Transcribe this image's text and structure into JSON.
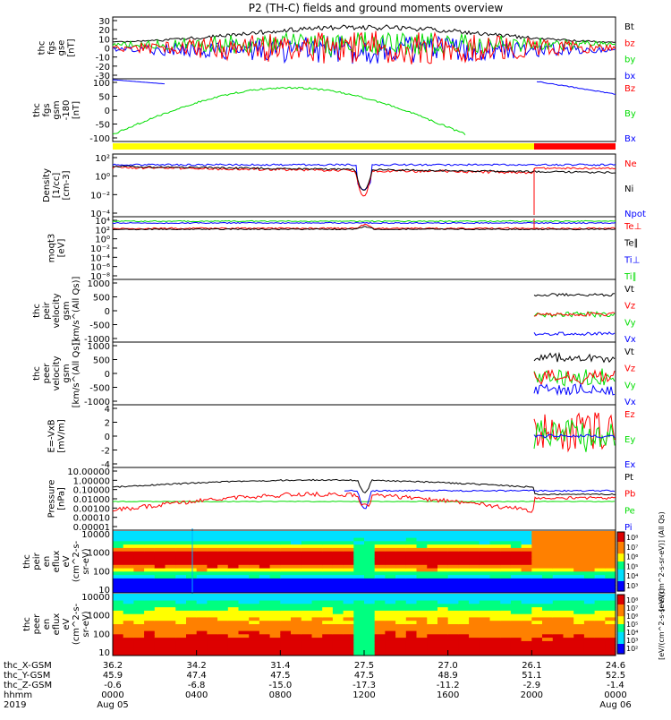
{
  "title": "P2 (TH-C) fields and ground moments overview",
  "colors": {
    "black": "#000000",
    "red": "#ff0000",
    "green": "#00dd00",
    "blue": "#0000ff",
    "yellow": "#ffff00"
  },
  "chart_data": [
    {
      "type": "line",
      "ylabel": [
        "thc",
        "fgs",
        "gse",
        "[nT]"
      ],
      "yticks": [
        30,
        20,
        10,
        0,
        -10,
        -20,
        -30
      ],
      "ylim": [
        -30,
        30
      ],
      "legend": [
        {
          "label": "Bt",
          "color": "black"
        },
        {
          "label": "bz",
          "color": "red"
        },
        {
          "label": "by",
          "color": "green"
        },
        {
          "label": "bx",
          "color": "blue"
        }
      ]
    },
    {
      "type": "line",
      "ylabel": [
        "thc",
        "fgs",
        "gsm",
        "-180",
        "[nT]"
      ],
      "yticks": [
        100,
        50,
        0,
        -50,
        -100
      ],
      "ylim": [
        -120,
        100
      ],
      "legend": [
        {
          "label": "Bz",
          "color": "red"
        },
        {
          "label": "By",
          "color": "green"
        },
        {
          "label": "Bx",
          "color": "blue"
        }
      ]
    },
    {
      "type": "line",
      "ylabel": [
        "Density",
        "[1/cc]",
        "[cm-3]"
      ],
      "yticks": [
        "10²",
        "10⁰",
        "10⁻²",
        "10⁻⁴"
      ],
      "ylim_log10": [
        -5,
        2.5
      ],
      "legend": [
        {
          "label": "Ne",
          "color": "red"
        },
        {
          "label": "Ni",
          "color": "black"
        },
        {
          "label": "Npot",
          "color": "blue"
        }
      ]
    },
    {
      "type": "line",
      "ylabel": [
        "moqt3",
        "[eV]"
      ],
      "yticks": [
        "10⁴",
        "10²",
        "10⁰",
        "10⁻²",
        "10⁻⁴",
        "10⁻⁶",
        "10⁻⁸"
      ],
      "ylim_log10": [
        -9,
        5
      ],
      "legend": [
        {
          "label": "Te⊥",
          "color": "red"
        },
        {
          "label": "Te∥",
          "color": "black"
        },
        {
          "label": "Ti⊥",
          "color": "blue"
        },
        {
          "label": "Ti∥",
          "color": "green"
        }
      ]
    },
    {
      "type": "line",
      "ylabel": [
        "thc",
        "peir",
        "velocity",
        "gsm",
        "[km/s^(All Qs)]"
      ],
      "yticks": [
        1000,
        500,
        0,
        -500,
        -1000
      ],
      "ylim": [
        -1000,
        1000
      ],
      "legend": [
        {
          "label": "Vt",
          "color": "black"
        },
        {
          "label": "Vz",
          "color": "red"
        },
        {
          "label": "Vy",
          "color": "green"
        },
        {
          "label": "Vx",
          "color": "blue"
        }
      ]
    },
    {
      "type": "line",
      "ylabel": [
        "thc",
        "peer",
        "velocity",
        "gsm",
        "[km/s^(All Qs)]"
      ],
      "yticks": [
        1000,
        500,
        0,
        -500,
        -1000
      ],
      "ylim": [
        -1000,
        1000
      ],
      "legend": [
        {
          "label": "Vt",
          "color": "black"
        },
        {
          "label": "Vz",
          "color": "red"
        },
        {
          "label": "Vy",
          "color": "green"
        },
        {
          "label": "Vx",
          "color": "blue"
        }
      ]
    },
    {
      "type": "line",
      "ylabel": [
        "E=-VxB",
        "[mV/m]"
      ],
      "yticks": [
        4,
        2,
        0,
        -2,
        -4
      ],
      "ylim": [
        -4,
        4
      ],
      "legend": [
        {
          "label": "Ez",
          "color": "red"
        },
        {
          "label": "Ey",
          "color": "green"
        },
        {
          "label": "Ex",
          "color": "blue"
        }
      ]
    },
    {
      "type": "line",
      "ylabel": [
        "Pressure",
        "[nPa]"
      ],
      "yticks": [
        "10.00000",
        "1.00000",
        "0.10000",
        "0.01000",
        "0.00100",
        "0.00010",
        "0.00001"
      ],
      "ylim_log10": [
        -5,
        1
      ],
      "legend": [
        {
          "label": "Pt",
          "color": "black"
        },
        {
          "label": "Pb",
          "color": "red"
        },
        {
          "label": "Pe",
          "color": "green"
        },
        {
          "label": "Pi",
          "color": "blue"
        }
      ]
    },
    {
      "type": "heatmap",
      "ylabel": [
        "thc",
        "peir",
        "en",
        "eflux",
        "eV",
        "(cm^2-s-",
        "sr-eV)"
      ],
      "yticks": [
        "10000",
        "1000",
        "100",
        "10"
      ],
      "ylim_log10": [
        0.7,
        4.2
      ],
      "colorbar_ticks": [
        "10⁸",
        "10⁷",
        "10⁶",
        "10⁵",
        "10⁴",
        "10³"
      ],
      "colorbar_label": "[eV/(cm^2-s-sr-eV)] (All Qs)"
    },
    {
      "type": "heatmap",
      "ylabel": [
        "thc",
        "peer",
        "en",
        "eflux",
        "eV",
        "(cm^2-s-",
        "sr-eV)"
      ],
      "yticks": [
        "10000",
        "1000",
        "100",
        "10"
      ],
      "ylim_log10": [
        0.7,
        4.2
      ],
      "colorbar_ticks": [
        "10⁸",
        "10⁷",
        "10⁶",
        "10⁵",
        "10⁴",
        "10³",
        "10²"
      ],
      "colorbar_label": "[eV/(cm^2-s-sr-eV)]"
    }
  ],
  "x_axis": {
    "row_labels": [
      "thc_X-GSM",
      "thc_Y-GSM",
      "thc_Z-GSM",
      "hhmm",
      "2019"
    ],
    "ticks": [
      {
        "x": "36.2",
        "y": "45.9",
        "z": "-0.6",
        "hhmm": "0000",
        "date": "Aug 05"
      },
      {
        "x": "34.2",
        "y": "47.4",
        "z": "-6.8",
        "hhmm": "0400",
        "date": ""
      },
      {
        "x": "31.4",
        "y": "47.5",
        "z": "-15.0",
        "hhmm": "0800",
        "date": ""
      },
      {
        "x": "27.5",
        "y": "47.5",
        "z": "-17.3",
        "hhmm": "1200",
        "date": ""
      },
      {
        "x": "27.0",
        "y": "48.9",
        "z": "-11.2",
        "hhmm": "1600",
        "date": ""
      },
      {
        "x": "26.1",
        "y": "51.1",
        "z": "-2.9",
        "hhmm": "2000",
        "date": ""
      },
      {
        "x": "24.6",
        "y": "52.5",
        "z": "-1.4",
        "hhmm": "0000",
        "date": "Aug 06"
      }
    ]
  }
}
